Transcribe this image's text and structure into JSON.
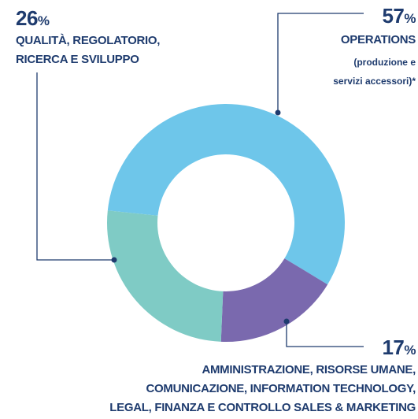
{
  "chart_data": {
    "type": "donut",
    "categories": [
      "OPERATIONS",
      "AMMINISTRAZIONE, RISORSE UMANE,\nCOMUNICAZIONE, INFORMATION TECHNOLOGY,\nLEGAL, FINANZA E CONTROLLO SALES & MARKETING",
      "QUALITÀ, REGOLATORIO,\nRICERCA E SVILUPPO"
    ],
    "values": [
      57,
      17,
      26
    ],
    "unit": "%",
    "note": "(produzione e\nservizi accessori)*",
    "colors": [
      "#6ec6ea",
      "#7a69ae",
      "#7fcbc5"
    ]
  }
}
